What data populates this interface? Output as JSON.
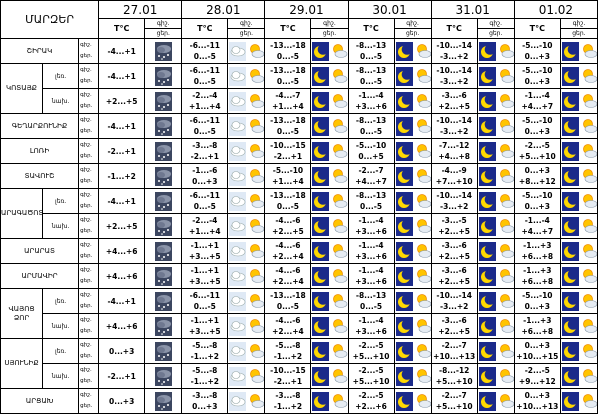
{
  "header": {
    "region_col": "ՄԱՐԶԵՐ",
    "temp_label": "T°C",
    "night_label": "գիշ.",
    "day_label": "ցեր.",
    "dates": [
      "27.01",
      "28.01",
      "29.01",
      "30.01",
      "31.01",
      "01.02"
    ]
  },
  "rows": [
    {
      "region": "ՇԻՐԱԿ",
      "zones": [
        {
          "first_day": "-4...+1",
          "days": [
            {
              "night": "-6...-11",
              "day": "0...-5"
            },
            {
              "night": "-13...-18",
              "day": "0...-5"
            },
            {
              "night": "-8...-13",
              "day": "0...-5"
            },
            {
              "night": "-10...-14",
              "day": "-3...+2"
            },
            {
              "night": "-5...-10",
              "day": "0...+3"
            }
          ]
        }
      ]
    },
    {
      "region": "ԿՈՏԱՅՔ",
      "zones": [
        {
          "zone": "լեռ.",
          "first_day": "-4...+1",
          "days": [
            {
              "night": "-6...-11",
              "day": "0...-5"
            },
            {
              "night": "-13...-18",
              "day": "0...-5"
            },
            {
              "night": "-8...-13",
              "day": "0...-5"
            },
            {
              "night": "-10...-14",
              "day": "-3...+2"
            },
            {
              "night": "-5...-10",
              "day": "0...+3"
            }
          ]
        },
        {
          "zone": "նախ.",
          "first_day": "+2...+5",
          "days": [
            {
              "night": "-2...-4",
              "day": "+1...+4"
            },
            {
              "night": "-4...-7",
              "day": "+1...+4"
            },
            {
              "night": "-1...-4",
              "day": "+3...+6"
            },
            {
              "night": "-3...-6",
              "day": "+2...+5"
            },
            {
              "night": "-1...-4",
              "day": "+4...+7"
            }
          ]
        }
      ]
    },
    {
      "region": "ԳԵՂԱՐՔՈՒՆԻՔ",
      "zones": [
        {
          "first_day": "-4...+1",
          "days": [
            {
              "night": "-6...-11",
              "day": "0...-5"
            },
            {
              "night": "-13...-18",
              "day": "0...-5"
            },
            {
              "night": "-8...-13",
              "day": "0...-5"
            },
            {
              "night": "-10...-14",
              "day": "-3...+2"
            },
            {
              "night": "-5...-10",
              "day": "0...+3"
            }
          ]
        }
      ]
    },
    {
      "region": "ԼՈՌԻ",
      "zones": [
        {
          "first_day": "-2...+1",
          "days": [
            {
              "night": "-3...-8",
              "day": "-2...+1"
            },
            {
              "night": "-10...-15",
              "day": "-2...+1"
            },
            {
              "night": "-5...-10",
              "day": "0...+5"
            },
            {
              "night": "-7...-12",
              "day": "+4...+8"
            },
            {
              "night": "-2...-5",
              "day": "+5...+10"
            }
          ]
        }
      ]
    },
    {
      "region": "ՏԱՎՈՒՇ",
      "zones": [
        {
          "first_day": "-1...+2",
          "days": [
            {
              "night": "-1...-6",
              "day": "0...+3"
            },
            {
              "night": "-5...-10",
              "day": "+1...+4"
            },
            {
              "night": "-2...-7",
              "day": "+4...+7"
            },
            {
              "night": "-4...-9",
              "day": "+7...+10"
            },
            {
              "night": "0...+3",
              "day": "+8...+12"
            }
          ]
        }
      ]
    },
    {
      "region": "ԱՐԱԳԱԾՈՏՆ",
      "zones": [
        {
          "zone": "լեռ.",
          "first_day": "-4...+1",
          "days": [
            {
              "night": "-6...-11",
              "day": "0...-5"
            },
            {
              "night": "-13...-18",
              "day": "0...-5"
            },
            {
              "night": "-8...-13",
              "day": "0...-5"
            },
            {
              "night": "-10...-14",
              "day": "-3...+2"
            },
            {
              "night": "-5...-10",
              "day": "0...+3"
            }
          ]
        },
        {
          "zone": "նախ.",
          "first_day": "+2...+5",
          "days": [
            {
              "night": "-2...-4",
              "day": "+1...+4"
            },
            {
              "night": "-4...-6",
              "day": "+2...+5"
            },
            {
              "night": "-1...-4",
              "day": "+3...+6"
            },
            {
              "night": "-3...-5",
              "day": "+2...+5"
            },
            {
              "night": "-1...-4",
              "day": "+4...+7"
            }
          ]
        }
      ]
    },
    {
      "region": "ԱՐԱՐԱՏ",
      "zones": [
        {
          "first_day": "+4...+6",
          "days": [
            {
              "night": "-1...+1",
              "day": "+3...+5"
            },
            {
              "night": "-4...-6",
              "day": "+2...+4"
            },
            {
              "night": "-1...-4",
              "day": "+3...+6"
            },
            {
              "night": "-3...-6",
              "day": "+2...+5"
            },
            {
              "night": "-1...+3",
              "day": "+6...+8"
            }
          ]
        }
      ]
    },
    {
      "region": "ԱՐՄԱՎԻՐ",
      "zones": [
        {
          "first_day": "+4...+6",
          "days": [
            {
              "night": "-1...+1",
              "day": "+3...+5"
            },
            {
              "night": "-4...-6",
              "day": "+2...+4"
            },
            {
              "night": "-1...-4",
              "day": "+3...+6"
            },
            {
              "night": "-3...-6",
              "day": "+2...+5"
            },
            {
              "night": "-1...+3",
              "day": "+6...+8"
            }
          ]
        }
      ]
    },
    {
      "region": "ՎԱՅՈՑ ՁՈՐ",
      "zones": [
        {
          "zone": "լեռ.",
          "first_day": "-4...+1",
          "days": [
            {
              "night": "-6...-11",
              "day": "0...-5"
            },
            {
              "night": "-13...-18",
              "day": "0...-5"
            },
            {
              "night": "-8...-13",
              "day": "0...-5"
            },
            {
              "night": "-10...-14",
              "day": "-3...+2"
            },
            {
              "night": "-5...-10",
              "day": "0...+3"
            }
          ]
        },
        {
          "zone": "նախ.",
          "first_day": "+4...+6",
          "days": [
            {
              "night": "-1...+1",
              "day": "+3...+5"
            },
            {
              "night": "-4...-6",
              "day": "+2...+4"
            },
            {
              "night": "-1...-4",
              "day": "+3...+6"
            },
            {
              "night": "-3...-6",
              "day": "+2...+5"
            },
            {
              "night": "-1...+3",
              "day": "+6...+8"
            }
          ]
        }
      ]
    },
    {
      "region": "ՍՅՈՒՆԻՔ",
      "zones": [
        {
          "zone": "լեռ.",
          "first_day": "0...+3",
          "days": [
            {
              "night": "-5...-8",
              "day": "-1...+2"
            },
            {
              "night": "-5...-8",
              "day": "-1...+2"
            },
            {
              "night": "-2...-5",
              "day": "+5...+10"
            },
            {
              "night": "-2...-7",
              "day": "+10...+13"
            },
            {
              "night": "0...+3",
              "day": "+10...+15"
            }
          ]
        },
        {
          "zone": "նախ.",
          "first_day": "-2...+1",
          "days": [
            {
              "night": "-5...-8",
              "day": "-1...+2"
            },
            {
              "night": "-10...-15",
              "day": "-2...+1"
            },
            {
              "night": "-2...-5",
              "day": "+5...+10"
            },
            {
              "night": "-8...-12",
              "day": "+5...+10"
            },
            {
              "night": "-2...-5",
              "day": "+9...+12"
            }
          ]
        }
      ]
    },
    {
      "region": "ԱՐՑԱԽ",
      "zones": [
        {
          "first_day": "0...+3",
          "days": [
            {
              "night": "-3...-8",
              "day": "0...+3"
            },
            {
              "night": "-3...-8",
              "day": "-1...+2"
            },
            {
              "night": "-2...-5",
              "day": "+2...+6"
            },
            {
              "night": "-2...-7",
              "day": "+5...+10"
            },
            {
              "night": "0...+3",
              "day": "+10...+13"
            }
          ]
        }
      ]
    }
  ]
}
